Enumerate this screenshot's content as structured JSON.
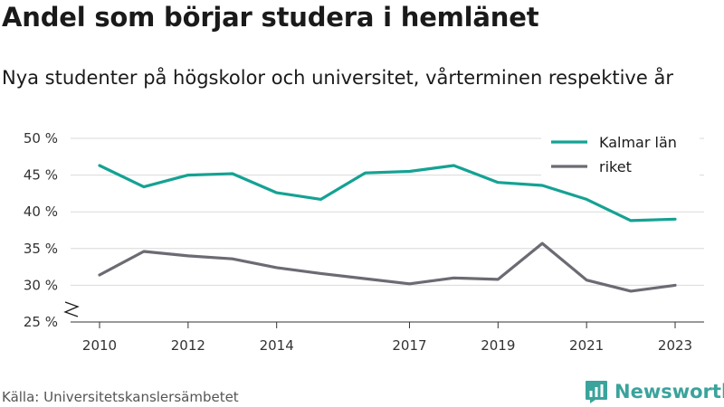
{
  "header": {
    "title": "Andel som börjar studera i hemlänet",
    "subtitle": "Nya studenter på högskolor och universitet, vårterminen respektive år"
  },
  "footer": {
    "source": "Källa: Universitetskanslersämbetet",
    "brand": "Newsworthy",
    "logo_icon": "newsworthy-chart-bubble-icon"
  },
  "colors": {
    "kalmar": "#14a293",
    "riket": "#6b6b73",
    "grid": "#d9d9d9",
    "axis": "#333333",
    "brand": "#3aa39c"
  },
  "chart_data": {
    "type": "line",
    "x_ticks": [
      2010,
      2012,
      2014,
      2017,
      2019,
      2021,
      2023
    ],
    "y_ticks": [
      {
        "value": 25,
        "label": "25 %"
      },
      {
        "value": 30,
        "label": "30 %"
      },
      {
        "value": 35,
        "label": "35 %"
      },
      {
        "value": 40,
        "label": "40 %"
      },
      {
        "value": 45,
        "label": "45 %"
      },
      {
        "value": 50,
        "label": "50 %"
      }
    ],
    "xlim": [
      2010,
      2023
    ],
    "ylim": [
      25,
      50
    ],
    "axis_break": true,
    "grid": "horizontal",
    "legend_position": "top-right",
    "series": [
      {
        "name": "Kalmar län",
        "color_key": "kalmar",
        "points": [
          [
            2010,
            46.3
          ],
          [
            2011,
            43.4
          ],
          [
            2012,
            45.0
          ],
          [
            2013,
            45.2
          ],
          [
            2014,
            42.6
          ],
          [
            2015,
            41.7
          ],
          [
            2016,
            45.3
          ],
          [
            2017,
            45.5
          ],
          [
            2018,
            46.3
          ],
          [
            2019,
            44.0
          ],
          [
            2020,
            43.6
          ],
          [
            2021,
            41.7
          ],
          [
            2022,
            38.8
          ],
          [
            2023,
            39.0
          ]
        ]
      },
      {
        "name": "riket",
        "color_key": "riket",
        "points": [
          [
            2010,
            31.4
          ],
          [
            2011,
            34.6
          ],
          [
            2012,
            34.0
          ],
          [
            2013,
            33.6
          ],
          [
            2014,
            32.4
          ],
          [
            2015,
            31.6
          ],
          [
            2016,
            30.9
          ],
          [
            2017,
            30.2
          ],
          [
            2018,
            31.0
          ],
          [
            2019,
            30.8
          ],
          [
            2020,
            35.7
          ],
          [
            2021,
            30.7
          ],
          [
            2022,
            29.2
          ],
          [
            2023,
            30.0
          ]
        ]
      }
    ]
  }
}
